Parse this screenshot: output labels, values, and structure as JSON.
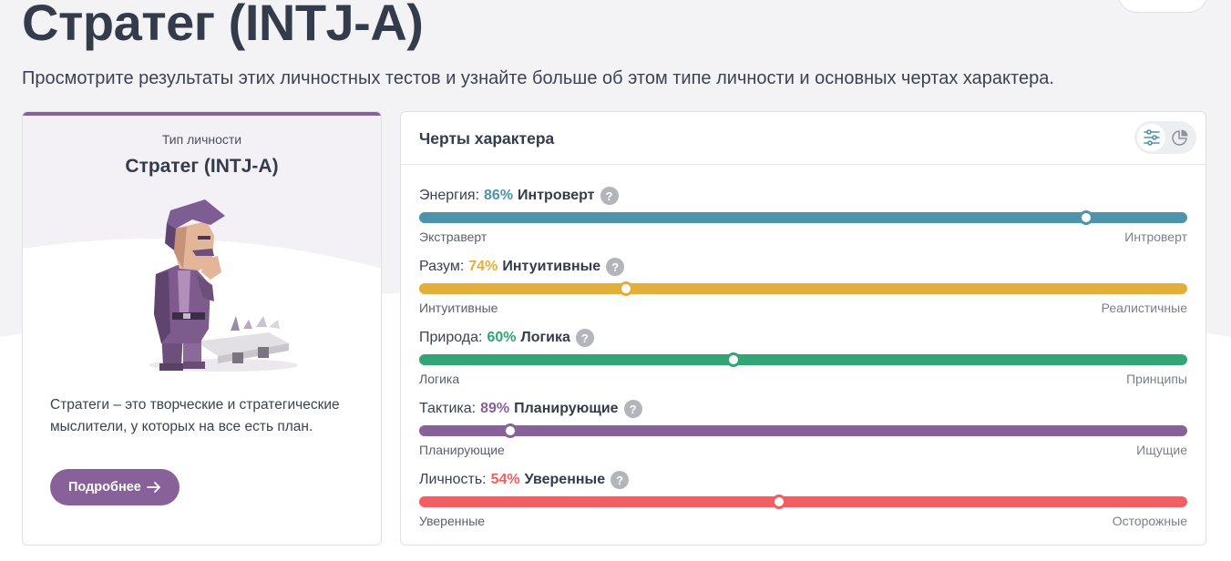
{
  "page": {
    "title": "Стратег (INTJ-A)",
    "subtitle": "Просмотрите результаты этих личностных тестов и узнайте больше об этом типе личности и основных чертах характера."
  },
  "type_card": {
    "caption": "Тип личности",
    "name": "Стратег (INTJ-A)",
    "description": "Стратеги – это творческие и стратегические мыслители, у которых на все есть план.",
    "more_label": "Подробнее",
    "accent_color": "#88619a"
  },
  "traits_card": {
    "title": "Черты характера",
    "view_options": [
      {
        "icon": "sliders-icon",
        "active": true
      },
      {
        "icon": "pie-chart-icon",
        "active": false
      }
    ],
    "traits": [
      {
        "label": "Энергия:",
        "percent": "86%",
        "result": "Интроверт",
        "left": "Экстраверт",
        "right": "Интроверт",
        "color": "#4d93ab",
        "position": 0.868
      },
      {
        "label": "Разум:",
        "percent": "74%",
        "result": "Интуитивные",
        "left": "Интуитивные",
        "right": "Реалистичные",
        "color": "#e4ae3a",
        "position": 0.269
      },
      {
        "label": "Природа:",
        "percent": "60%",
        "result": "Логика",
        "left": "Логика",
        "right": "Принципы",
        "color": "#33a474",
        "position": 0.409
      },
      {
        "label": "Тактика:",
        "percent": "89%",
        "result": "Планирующие",
        "left": "Планирующие",
        "right": "Ищущие",
        "color": "#88619a",
        "position": 0.119
      },
      {
        "label": "Личность:",
        "percent": "54%",
        "result": "Уверенные",
        "left": "Уверенные",
        "right": "Осторожные",
        "color": "#f25e62",
        "position": 0.468
      }
    ]
  }
}
